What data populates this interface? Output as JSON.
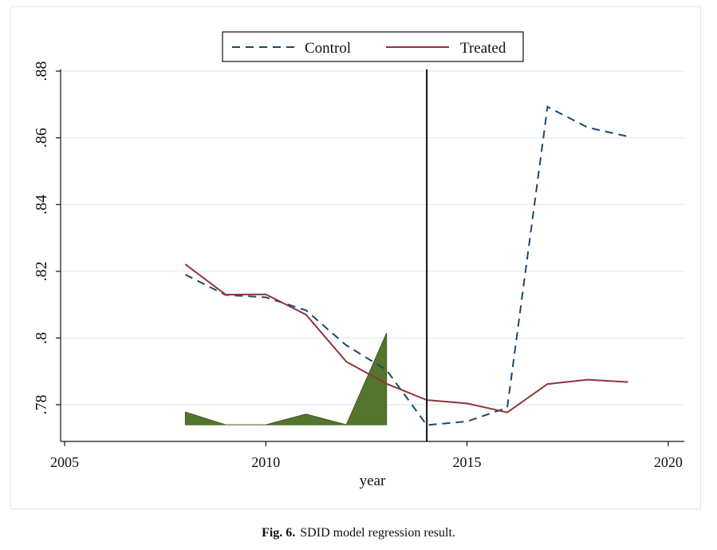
{
  "figure": {
    "caption_label": "Fig. 6.",
    "caption_text": "SDID model regression result."
  },
  "chart_data": {
    "type": "line",
    "title": "",
    "xlabel": "year",
    "ylabel": "",
    "xlim": [
      2004.9,
      2020.4
    ],
    "ylim": [
      0.769,
      0.8805
    ],
    "x_ticks": [
      2005,
      2010,
      2015,
      2020
    ],
    "x_tick_labels": [
      "2005",
      "2010",
      "2015",
      "2020"
    ],
    "y_ticks": [
      0.78,
      0.8,
      0.82,
      0.84,
      0.86,
      0.88
    ],
    "y_tick_labels": [
      ".78",
      ".8",
      ".82",
      ".84",
      ".86",
      ".88"
    ],
    "grid": "horizontal",
    "legend": {
      "position": "top-center",
      "entries": [
        "Control",
        "Treated"
      ]
    },
    "vertical_line": {
      "x": 2014
    },
    "series": [
      {
        "name": "Control",
        "style": "dashed",
        "color": "#1a476f",
        "x": [
          2008,
          2009,
          2010,
          2011,
          2012,
          2013,
          2014,
          2015,
          2016,
          2017,
          2018,
          2019
        ],
        "y": [
          0.819,
          0.8129,
          0.8122,
          0.8083,
          0.7978,
          0.7904,
          0.7739,
          0.775,
          0.7791,
          0.8693,
          0.8631,
          0.8604
        ]
      },
      {
        "name": "Treated",
        "style": "solid",
        "color": "#90353b",
        "x": [
          2008,
          2009,
          2010,
          2011,
          2012,
          2013,
          2014,
          2015,
          2016,
          2017,
          2018,
          2019
        ],
        "y": [
          0.8221,
          0.813,
          0.8131,
          0.807,
          0.7929,
          0.7863,
          0.7814,
          0.7804,
          0.7777,
          0.7862,
          0.7875,
          0.7868
        ]
      }
    ],
    "weights_area": {
      "color": "#55752f",
      "baseline": 0.774,
      "x": [
        2008,
        2009,
        2010,
        2011,
        2012,
        2013
      ],
      "y": [
        0.7778,
        0.774,
        0.774,
        0.7772,
        0.774,
        0.8015
      ]
    }
  }
}
